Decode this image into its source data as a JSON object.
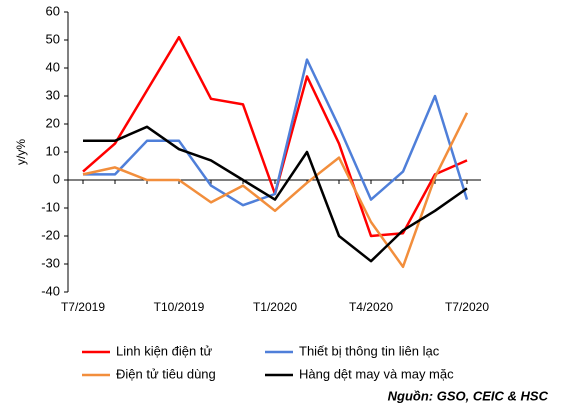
{
  "chart_data": {
    "type": "line",
    "y_label": "y/y%",
    "source": "Nguồn: GSO, CEIC & HSC",
    "categories": [
      "T7/2019",
      null,
      null,
      "T10/2019",
      null,
      null,
      "T1/2020",
      null,
      null,
      "T4/2020",
      null,
      null,
      "T7/2020"
    ],
    "series": [
      {
        "name": "Linh kiện điện tử",
        "color": "#ff0000",
        "values": [
          3,
          13,
          32,
          51,
          29,
          27,
          -5,
          37,
          13,
          -20,
          -19,
          2,
          7
        ]
      },
      {
        "name": "Thiết bị thông tin liên lạc",
        "color": "#4f7fd9",
        "values": [
          2,
          2,
          14,
          14,
          -2,
          -9,
          -5,
          43,
          19,
          -7,
          3,
          30,
          -7
        ]
      },
      {
        "name": "Điện tử tiêu dùng",
        "color": "#f28e3c",
        "values": [
          2,
          4.5,
          0,
          0,
          -8,
          -2,
          -11,
          -1,
          8,
          -15,
          -31,
          1,
          24
        ]
      },
      {
        "name": "Hàng dệt may và may mặc",
        "color": "#000000",
        "values": [
          14,
          14,
          19,
          11,
          7,
          0,
          -7,
          10,
          -20,
          -29,
          -18,
          -11,
          -3
        ]
      }
    ],
    "ylim": [
      -40,
      60
    ],
    "yticks": [
      -40,
      -30,
      -20,
      -10,
      0,
      10,
      20,
      30,
      40,
      50,
      60
    ],
    "grid": false,
    "legend": "bottom"
  }
}
